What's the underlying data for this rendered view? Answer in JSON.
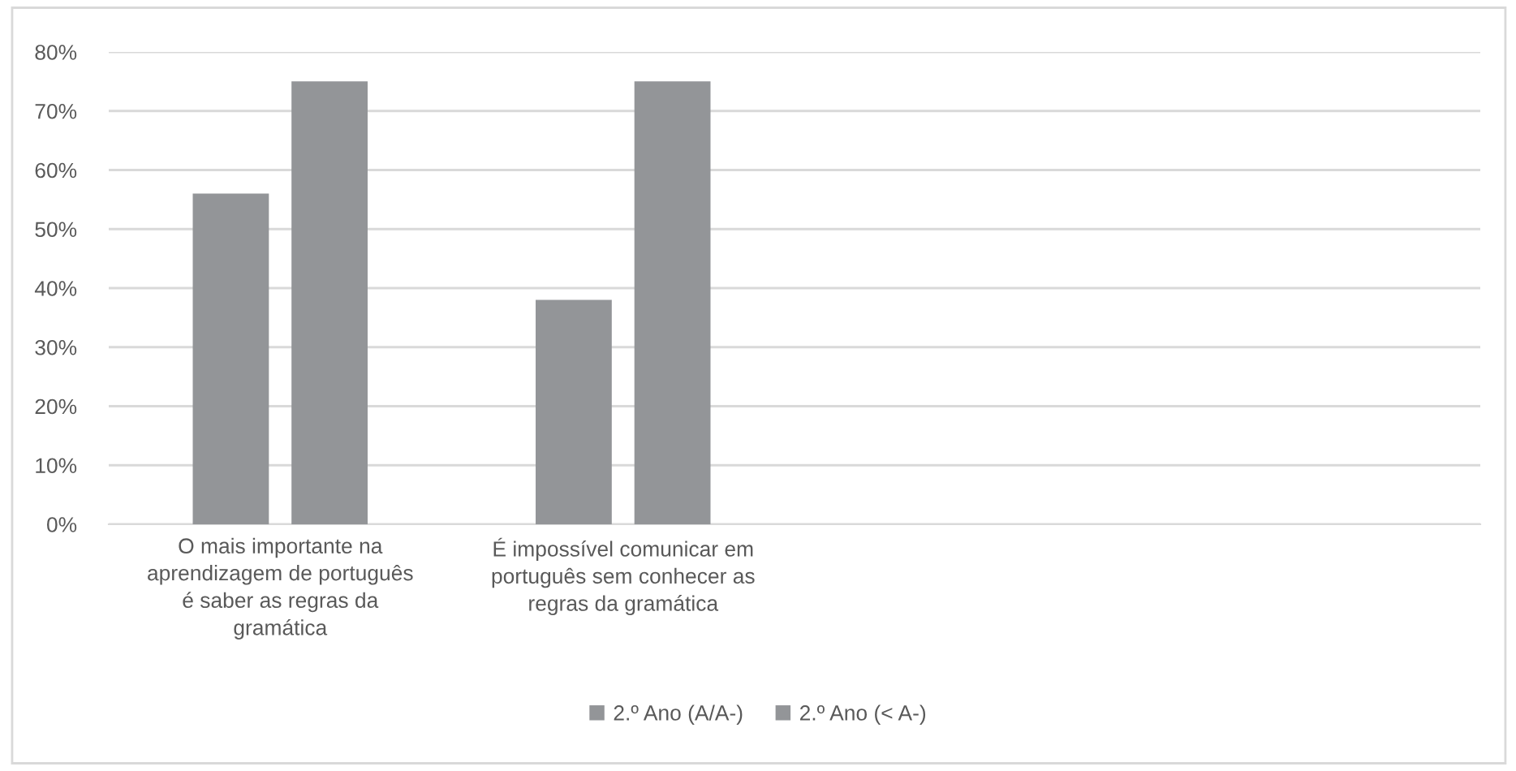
{
  "chart_data": {
    "type": "bar",
    "categories": [
      "O mais importante na aprendizagem de português é saber as regras da gramática",
      "É impossível comunicar em português sem conhecer as regras da gramática",
      null,
      null
    ],
    "series": [
      {
        "name": "2.º Ano (A/A-)",
        "color": "#939598",
        "values": [
          56,
          38,
          null,
          null
        ]
      },
      {
        "name": "2.º Ano (< A-)",
        "color": "#939598",
        "values": [
          75,
          75,
          null,
          null
        ]
      }
    ],
    "ylim": [
      0,
      80
    ],
    "yticks": [
      {
        "value": 0,
        "label": "0%"
      },
      {
        "value": 10,
        "label": "10%"
      },
      {
        "value": 20,
        "label": "20%"
      },
      {
        "value": 30,
        "label": "30%"
      },
      {
        "value": 40,
        "label": "40%"
      },
      {
        "value": 50,
        "label": "50%"
      },
      {
        "value": 60,
        "label": "60%"
      },
      {
        "value": 70,
        "label": "70%"
      },
      {
        "value": 80,
        "label": "80%"
      }
    ],
    "grid": "y",
    "legend": "bottom"
  }
}
